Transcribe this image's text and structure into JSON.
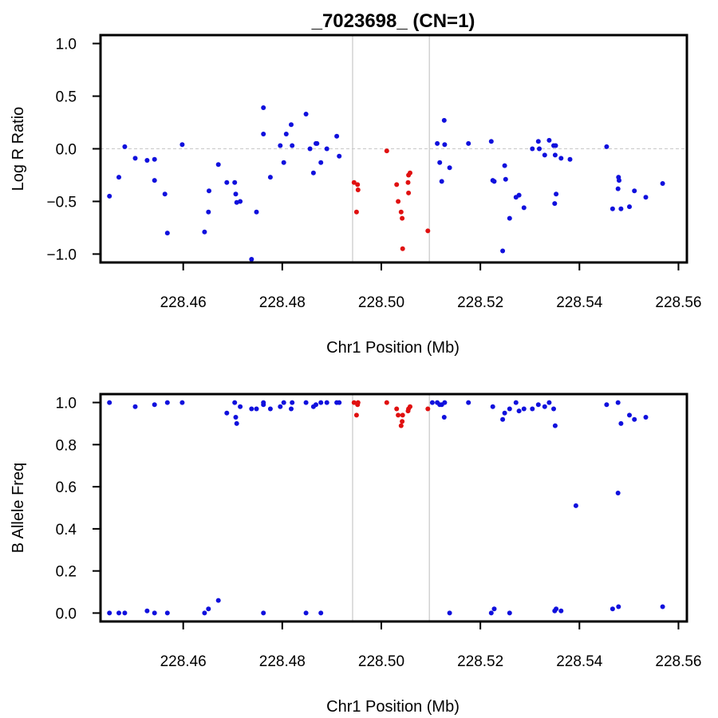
{
  "title": "_7023698_ (CN=1)",
  "colors": {
    "normal": "#1010dd",
    "highlight": "#e01010",
    "boundary": "#c8c8c8",
    "zero_line": "#c8c8c8",
    "frame": "#000000"
  },
  "chart_data": [
    {
      "type": "scatter",
      "name": "Log R Ratio",
      "xlabel": "Chr1 Position (Mb)",
      "ylabel": "Log R Ratio",
      "xlim": [
        228.4433,
        228.5617
      ],
      "ylim": [
        -1.08,
        1.08
      ],
      "xticks": [
        228.46,
        228.48,
        228.5,
        228.52,
        228.54,
        228.56
      ],
      "xtick_labels": [
        "228.46",
        "228.48",
        "228.50",
        "228.52",
        "228.54",
        "228.56"
      ],
      "yticks": [
        -1.0,
        -0.5,
        0.0,
        0.5,
        1.0
      ],
      "ytick_labels": [
        "−1.0",
        "−0.5",
        "0.0",
        "0.5",
        "1.0"
      ],
      "reference_line_y": 0.0,
      "boundaries": [
        228.4942,
        228.5097
      ],
      "grid": false,
      "series": [
        {
          "color_key": "normal",
          "points": [
            [
              228.4451,
              -0.45
            ],
            [
              228.447,
              -0.27
            ],
            [
              228.4482,
              0.02
            ],
            [
              228.4503,
              -0.09
            ],
            [
              228.4527,
              -0.11
            ],
            [
              228.4542,
              -0.1
            ],
            [
              228.4542,
              -0.3
            ],
            [
              228.4563,
              -0.43
            ],
            [
              228.4568,
              -0.8
            ],
            [
              228.4598,
              0.04
            ],
            [
              228.4643,
              -0.79
            ],
            [
              228.4651,
              -0.6
            ],
            [
              228.4652,
              -0.4
            ],
            [
              228.4671,
              -0.15
            ],
            [
              228.4688,
              -0.32
            ],
            [
              228.4704,
              -0.32
            ],
            [
              228.4706,
              -0.43
            ],
            [
              228.4708,
              -0.51
            ],
            [
              228.4715,
              -0.5
            ],
            [
              228.4738,
              -1.05
            ],
            [
              228.4748,
              -0.6
            ],
            [
              228.4762,
              0.39
            ],
            [
              228.4762,
              0.14
            ],
            [
              228.4776,
              -0.27
            ],
            [
              228.4796,
              0.03
            ],
            [
              228.4803,
              -0.13
            ],
            [
              228.4808,
              0.14
            ],
            [
              228.4818,
              0.23
            ],
            [
              228.482,
              0.03
            ],
            [
              228.4848,
              0.33
            ],
            [
              228.4856,
              0.0
            ],
            [
              228.4863,
              -0.23
            ],
            [
              228.4868,
              0.05
            ],
            [
              228.487,
              0.05
            ],
            [
              228.4878,
              -0.13
            ],
            [
              228.489,
              0.0
            ],
            [
              228.491,
              0.12
            ],
            [
              228.4915,
              -0.07
            ],
            [
              228.5113,
              0.05
            ],
            [
              228.5118,
              -0.13
            ],
            [
              228.5122,
              -0.31
            ],
            [
              228.5127,
              0.27
            ],
            [
              228.5128,
              0.04
            ],
            [
              228.5138,
              -0.18
            ],
            [
              228.5176,
              0.05
            ],
            [
              228.5222,
              0.07
            ],
            [
              228.5225,
              -0.3
            ],
            [
              228.5228,
              -0.31
            ],
            [
              228.5245,
              -0.97
            ],
            [
              228.5249,
              -0.16
            ],
            [
              228.5251,
              -0.29
            ],
            [
              228.5259,
              -0.66
            ],
            [
              228.5272,
              -0.46
            ],
            [
              228.5278,
              -0.44
            ],
            [
              228.5288,
              -0.56
            ],
            [
              228.5305,
              0.0
            ],
            [
              228.5317,
              0.07
            ],
            [
              228.5319,
              0.0
            ],
            [
              228.533,
              -0.06
            ],
            [
              228.5339,
              0.08
            ],
            [
              228.5348,
              0.03
            ],
            [
              228.5351,
              -0.06
            ],
            [
              228.535,
              -0.52
            ],
            [
              228.5353,
              -0.43
            ],
            [
              228.5352,
              0.03
            ],
            [
              228.5363,
              -0.09
            ],
            [
              228.5381,
              -0.1
            ],
            [
              228.5455,
              0.02
            ],
            [
              228.5467,
              -0.57
            ],
            [
              228.5478,
              -0.38
            ],
            [
              228.5479,
              -0.27
            ],
            [
              228.548,
              -0.3
            ],
            [
              228.5484,
              -0.57
            ],
            [
              228.5501,
              -0.55
            ],
            [
              228.5511,
              -0.4
            ],
            [
              228.5534,
              -0.46
            ],
            [
              228.5568,
              -0.33
            ]
          ]
        },
        {
          "color_key": "highlight",
          "points": [
            [
              228.4945,
              -0.32
            ],
            [
              228.495,
              -0.6
            ],
            [
              228.4952,
              -0.34
            ],
            [
              228.4953,
              -0.39
            ],
            [
              228.5011,
              -0.02
            ],
            [
              228.5031,
              -0.34
            ],
            [
              228.5034,
              -0.5
            ],
            [
              228.504,
              -0.6
            ],
            [
              228.5042,
              -0.66
            ],
            [
              228.5043,
              -0.95
            ],
            [
              228.5055,
              -0.42
            ],
            [
              228.5054,
              -0.32
            ],
            [
              228.5055,
              -0.25
            ],
            [
              228.5058,
              -0.23
            ],
            [
              228.5094,
              -0.78
            ]
          ]
        }
      ]
    },
    {
      "type": "scatter",
      "name": "B Allele Freq",
      "xlabel": "Chr1 Position (Mb)",
      "ylabel": "B Allele Freq",
      "xlim": [
        228.4433,
        228.5617
      ],
      "ylim": [
        -0.04,
        1.04
      ],
      "xticks": [
        228.46,
        228.48,
        228.5,
        228.52,
        228.54,
        228.56
      ],
      "xtick_labels": [
        "228.46",
        "228.48",
        "228.50",
        "228.52",
        "228.54",
        "228.56"
      ],
      "yticks": [
        0.0,
        0.2,
        0.4,
        0.6,
        0.8,
        1.0
      ],
      "ytick_labels": [
        "0.0",
        "0.2",
        "0.4",
        "0.6",
        "0.8",
        "1.0"
      ],
      "boundaries": [
        228.4942,
        228.5097
      ],
      "grid": false,
      "series": [
        {
          "color_key": "normal",
          "points": [
            [
              228.4451,
              1.0
            ],
            [
              228.4503,
              0.98
            ],
            [
              228.4542,
              0.99
            ],
            [
              228.4568,
              1.0
            ],
            [
              228.4598,
              1.0
            ],
            [
              228.4688,
              0.95
            ],
            [
              228.4704,
              1.0
            ],
            [
              228.4706,
              0.93
            ],
            [
              228.4708,
              0.9
            ],
            [
              228.4715,
              0.98
            ],
            [
              228.4738,
              0.97
            ],
            [
              228.4748,
              0.97
            ],
            [
              228.4762,
              0.99
            ],
            [
              228.4762,
              1.0
            ],
            [
              228.4776,
              0.97
            ],
            [
              228.4796,
              0.98
            ],
            [
              228.4803,
              1.0
            ],
            [
              228.4818,
              0.97
            ],
            [
              228.482,
              1.0
            ],
            [
              228.4848,
              1.0
            ],
            [
              228.4863,
              0.98
            ],
            [
              228.4868,
              0.99
            ],
            [
              228.4878,
              1.0
            ],
            [
              228.489,
              1.0
            ],
            [
              228.491,
              1.0
            ],
            [
              228.4915,
              1.0
            ],
            [
              228.5103,
              1.0
            ],
            [
              228.5113,
              1.0
            ],
            [
              228.5118,
              0.99
            ],
            [
              228.5122,
              0.99
            ],
            [
              228.5127,
              0.93
            ],
            [
              228.5128,
              1.0
            ],
            [
              228.5176,
              1.0
            ],
            [
              228.5225,
              0.98
            ],
            [
              228.5245,
              0.92
            ],
            [
              228.5249,
              0.95
            ],
            [
              228.5259,
              0.97
            ],
            [
              228.5272,
              1.0
            ],
            [
              228.5278,
              0.96
            ],
            [
              228.5288,
              0.97
            ],
            [
              228.5305,
              0.97
            ],
            [
              228.5317,
              0.99
            ],
            [
              228.533,
              0.98
            ],
            [
              228.5339,
              1.0
            ],
            [
              228.5348,
              0.97
            ],
            [
              228.5351,
              0.89
            ],
            [
              228.5455,
              0.99
            ],
            [
              228.5478,
              1.0
            ],
            [
              228.5484,
              0.9
            ],
            [
              228.5501,
              0.94
            ],
            [
              228.5511,
              0.92
            ],
            [
              228.5534,
              0.93
            ],
            [
              228.5393,
              0.51
            ],
            [
              228.5478,
              0.57
            ],
            [
              228.4451,
              0.0
            ],
            [
              228.447,
              0.0
            ],
            [
              228.4482,
              0.0
            ],
            [
              228.4527,
              0.01
            ],
            [
              228.4542,
              0.0
            ],
            [
              228.4568,
              0.0
            ],
            [
              228.4643,
              0.0
            ],
            [
              228.4651,
              0.02
            ],
            [
              228.4671,
              0.06
            ],
            [
              228.4762,
              0.0
            ],
            [
              228.4848,
              0.0
            ],
            [
              228.4878,
              0.0
            ],
            [
              228.5138,
              0.0
            ],
            [
              228.5222,
              0.0
            ],
            [
              228.5228,
              0.02
            ],
            [
              228.5259,
              0.0
            ],
            [
              228.535,
              0.01
            ],
            [
              228.5353,
              0.02
            ],
            [
              228.5363,
              0.01
            ],
            [
              228.5467,
              0.02
            ],
            [
              228.5479,
              0.03
            ],
            [
              228.5568,
              0.03
            ]
          ]
        },
        {
          "color_key": "highlight",
          "points": [
            [
              228.4945,
              1.0
            ],
            [
              228.495,
              0.94
            ],
            [
              228.4952,
              0.99
            ],
            [
              228.4953,
              1.0
            ],
            [
              228.5011,
              1.0
            ],
            [
              228.5031,
              0.97
            ],
            [
              228.5034,
              0.94
            ],
            [
              228.504,
              0.89
            ],
            [
              228.5042,
              0.91
            ],
            [
              228.5043,
              0.94
            ],
            [
              228.5055,
              0.97
            ],
            [
              228.5054,
              0.96
            ],
            [
              228.5058,
              0.98
            ],
            [
              228.5094,
              0.97
            ]
          ]
        }
      ]
    }
  ]
}
